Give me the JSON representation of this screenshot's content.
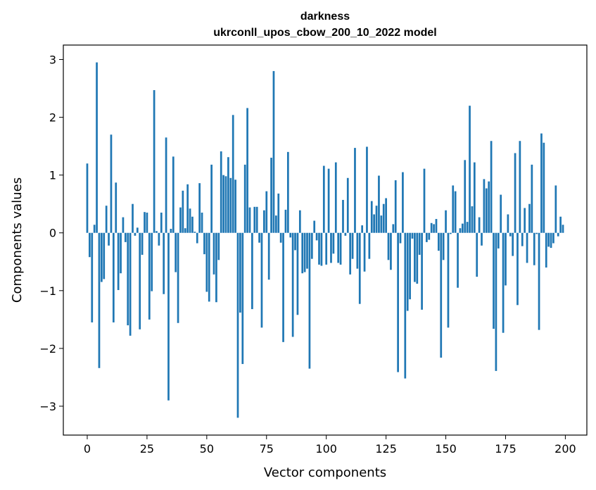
{
  "chart_data": {
    "type": "bar",
    "title": "darkness",
    "subtitle": "ukrconll_upos_cbow_200_10_2022 model",
    "xlabel": "Vector components",
    "ylabel": "Components values",
    "xlim": [
      -10,
      209
    ],
    "ylim": [
      -3.5,
      3.25
    ],
    "xticks": [
      0,
      25,
      50,
      75,
      100,
      125,
      150,
      175,
      200
    ],
    "yticks": [
      -3,
      -2,
      -1,
      0,
      1,
      2,
      3
    ],
    "grid": false,
    "bar_color": "#1f77b4",
    "x": [
      0,
      1,
      2,
      3,
      4,
      5,
      6,
      7,
      8,
      9,
      10,
      11,
      12,
      13,
      14,
      15,
      16,
      17,
      18,
      19,
      20,
      21,
      22,
      23,
      24,
      25,
      26,
      27,
      28,
      29,
      30,
      31,
      32,
      33,
      34,
      35,
      36,
      37,
      38,
      39,
      40,
      41,
      42,
      43,
      44,
      45,
      46,
      47,
      48,
      49,
      50,
      51,
      52,
      53,
      54,
      55,
      56,
      57,
      58,
      59,
      60,
      61,
      62,
      63,
      64,
      65,
      66,
      67,
      68,
      69,
      70,
      71,
      72,
      73,
      74,
      75,
      76,
      77,
      78,
      79,
      80,
      81,
      82,
      83,
      84,
      85,
      86,
      87,
      88,
      89,
      90,
      91,
      92,
      93,
      94,
      95,
      96,
      97,
      98,
      99,
      100,
      101,
      102,
      103,
      104,
      105,
      106,
      107,
      108,
      109,
      110,
      111,
      112,
      113,
      114,
      115,
      116,
      117,
      118,
      119,
      120,
      121,
      122,
      123,
      124,
      125,
      126,
      127,
      128,
      129,
      130,
      131,
      132,
      133,
      134,
      135,
      136,
      137,
      138,
      139,
      140,
      141,
      142,
      143,
      144,
      145,
      146,
      147,
      148,
      149,
      150,
      151,
      152,
      153,
      154,
      155,
      156,
      157,
      158,
      159,
      160,
      161,
      162,
      163,
      164,
      165,
      166,
      167,
      168,
      169,
      170,
      171,
      172,
      173,
      174,
      175,
      176,
      177,
      178,
      179,
      180,
      181,
      182,
      183,
      184,
      185,
      186,
      187,
      188,
      189,
      190,
      191,
      192,
      193,
      194,
      195,
      196,
      197,
      198,
      199
    ],
    "values": [
      1.2,
      -0.42,
      -1.55,
      0.14,
      2.95,
      -2.34,
      -0.85,
      -0.8,
      0.47,
      -0.22,
      1.7,
      -1.55,
      0.87,
      -0.99,
      -0.7,
      0.27,
      -0.16,
      -1.6,
      -1.78,
      0.5,
      -0.05,
      0.09,
      -1.67,
      -0.38,
      0.36,
      0.35,
      -1.5,
      -1.01,
      2.47,
      0.03,
      -0.22,
      0.35,
      -1.06,
      1.65,
      -2.9,
      0.07,
      1.32,
      -0.68,
      -1.56,
      0.44,
      0.73,
      0.08,
      0.84,
      0.42,
      0.28,
      0.02,
      -0.18,
      0.86,
      0.35,
      -0.37,
      -1.02,
      -1.19,
      1.18,
      -0.72,
      -1.2,
      -0.47,
      1.41,
      1.0,
      0.98,
      1.31,
      0.95,
      2.04,
      0.92,
      -3.2,
      -1.38,
      -2.27,
      1.18,
      2.16,
      0.44,
      -1.32,
      0.45,
      0.45,
      -0.17,
      -1.64,
      0.39,
      0.72,
      -0.81,
      1.3,
      2.8,
      0.3,
      0.68,
      -0.17,
      -1.89,
      0.4,
      1.4,
      -0.08,
      -1.8,
      -0.3,
      -1.42,
      0.39,
      -0.7,
      -0.68,
      -0.62,
      -2.35,
      -0.45,
      0.21,
      -0.13,
      -0.55,
      -0.57,
      1.16,
      -0.55,
      1.11,
      -0.52,
      -0.36,
      1.22,
      -0.52,
      -0.55,
      0.57,
      -0.05,
      0.95,
      -0.72,
      -0.45,
      1.47,
      -0.62,
      -1.23,
      0.13,
      -0.67,
      1.49,
      -0.45,
      0.55,
      0.32,
      0.47,
      0.99,
      0.3,
      0.5,
      0.6,
      -0.47,
      -0.64,
      0.15,
      0.91,
      -2.41,
      -0.18,
      1.05,
      -2.52,
      -1.35,
      -1.15,
      -0.1,
      -0.85,
      -0.88,
      -0.38,
      -1.33,
      1.11,
      -0.16,
      -0.12,
      0.17,
      0.15,
      0.24,
      -0.31,
      -2.16,
      -0.47,
      0.39,
      -1.64,
      -0.02,
      0.82,
      0.72,
      -0.95,
      0.08,
      0.16,
      1.26,
      0.19,
      2.2,
      0.46,
      1.22,
      -0.76,
      0.27,
      -0.22,
      0.93,
      0.77,
      0.89,
      1.59,
      -1.66,
      -2.39,
      -0.27,
      0.66,
      -1.73,
      -0.91,
      0.32,
      -0.06,
      -0.4,
      1.38,
      -1.25,
      1.59,
      -0.23,
      0.43,
      -0.52,
      0.5,
      1.18,
      -0.56,
      -0.02,
      -1.68,
      1.72,
      1.56,
      -0.6,
      -0.24,
      -0.26,
      -0.18,
      0.82,
      -0.06,
      0.28,
      0.14
    ]
  }
}
